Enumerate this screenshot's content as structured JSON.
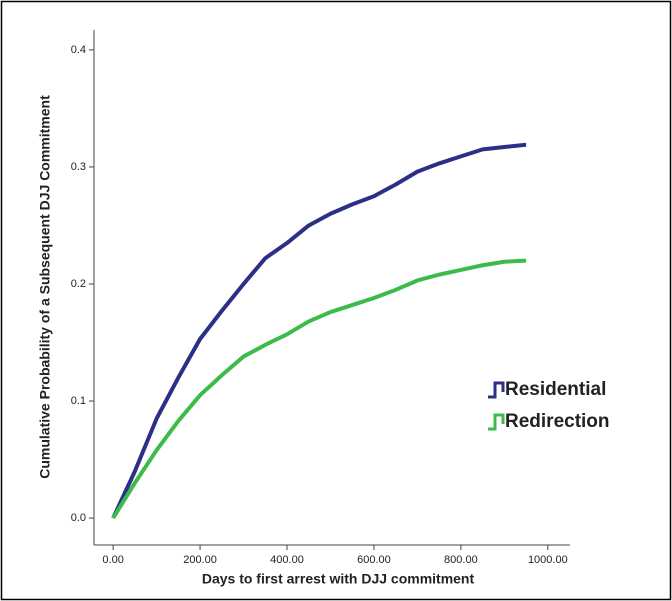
{
  "chart_data": {
    "type": "line",
    "x_label": "Days to first arrest with DJJ commitment",
    "y_label": "Cumulative Probability of a Subsequent DJJ Commitment",
    "x": [
      0,
      50,
      100,
      150,
      200,
      250,
      300,
      350,
      400,
      450,
      500,
      550,
      600,
      650,
      700,
      750,
      800,
      850,
      900,
      950
    ],
    "series": [
      {
        "name": "Residential",
        "color": "#2b2f86",
        "values": [
          0,
          0.04,
          0.085,
          0.12,
          0.153,
          0.177,
          0.2,
          0.222,
          0.235,
          0.25,
          0.26,
          0.268,
          0.275,
          0.285,
          0.296,
          0.303,
          0.309,
          0.315,
          0.317,
          0.319
        ]
      },
      {
        "name": "Redirection",
        "color": "#3dbb4a",
        "values": [
          0,
          0.03,
          0.058,
          0.083,
          0.105,
          0.122,
          0.138,
          0.148,
          0.157,
          0.168,
          0.176,
          0.182,
          0.188,
          0.195,
          0.203,
          0.208,
          0.212,
          0.216,
          0.219,
          0.22
        ]
      }
    ],
    "xlim": [
      -44,
      1051
    ],
    "ylim": [
      -0.023,
      0.417
    ],
    "xticks": [
      {
        "value": 0,
        "label": "0.00"
      },
      {
        "value": 200,
        "label": "200.00"
      },
      {
        "value": 400,
        "label": "400.00"
      },
      {
        "value": 600,
        "label": "600.00"
      },
      {
        "value": 800,
        "label": "800.00"
      },
      {
        "value": 1000,
        "label": "1000.00"
      }
    ],
    "yticks": [
      {
        "value": 0,
        "label": "0.0"
      },
      0.1,
      0.2,
      0.3,
      0.4
    ],
    "legend": "right"
  }
}
